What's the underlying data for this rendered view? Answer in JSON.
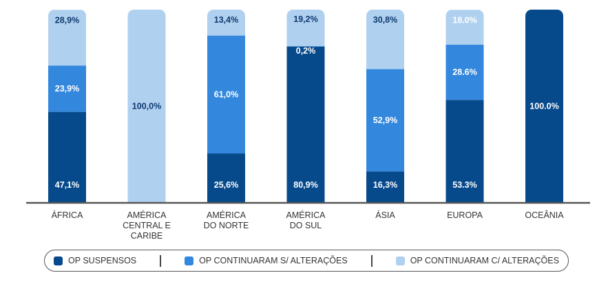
{
  "chart_data": {
    "type": "bar",
    "stacked": true,
    "percent_stacked": true,
    "title": "",
    "xlabel": "",
    "ylabel": "",
    "ylim": [
      0,
      100
    ],
    "grid": false,
    "legend_position": "bottom",
    "categories": [
      [
        "ÁFRICA"
      ],
      [
        "AMÉRICA",
        "CENTRAL E",
        "CARIBE"
      ],
      [
        "AMÉRICA",
        "DO NORTE"
      ],
      [
        "AMÉRICA",
        "DO SUL"
      ],
      [
        "ÁSIA"
      ],
      [
        "EUROPA"
      ],
      [
        "OCEÂNIA"
      ]
    ],
    "series": [
      {
        "name": "OP SUSPENSOS",
        "color": "#074A8C",
        "values": [
          47.1,
          0,
          25.6,
          80.9,
          16.3,
          53.3,
          100.0
        ],
        "labels": [
          "47,1%",
          "",
          "25,6%",
          "80,9%",
          "16,3%",
          "53.3%",
          "100.0%"
        ],
        "label_color": "#ffffff"
      },
      {
        "name": "OP CONTINUARAM S/ ALTERAÇÕES",
        "color": "#3388DD",
        "values": [
          23.9,
          0,
          61.0,
          0.2,
          52.9,
          28.6,
          0
        ],
        "labels": [
          "23,9%",
          "",
          "61,0%",
          "0,2%",
          "52,9%",
          "28.6%",
          ""
        ],
        "label_color": "#ffffff"
      },
      {
        "name": "OP CONTINUARAM C/ ALTERAÇÕES",
        "color": "#B0D0F0",
        "values": [
          28.9,
          100.0,
          13.4,
          19.2,
          30.8,
          18.0,
          0
        ],
        "labels": [
          "28,9%",
          "100,0%",
          "13,4%",
          "19,2%",
          "30,8%",
          "18.0%",
          ""
        ],
        "label_color": "#0E3A6E",
        "label_color_overrides": {
          "5": "#ffffff"
        }
      }
    ]
  },
  "legend": {
    "items": [
      {
        "label": "OP SUSPENSOS",
        "color": "#074A8C"
      },
      {
        "label": "OP CONTINUARAM S/ ALTERAÇÕES",
        "color": "#3388DD"
      },
      {
        "label": "OP CONTINUARAM C/ ALTERAÇÕES",
        "color": "#B0D0F0"
      }
    ]
  },
  "colors": {
    "axis": "#555555",
    "category_label": "#333333"
  }
}
